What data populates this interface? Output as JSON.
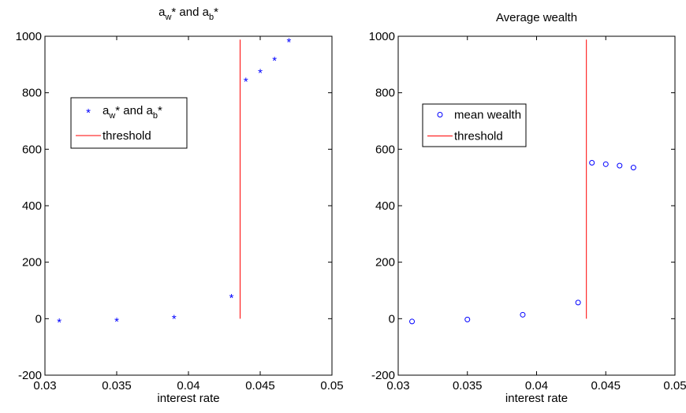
{
  "chart_data": [
    {
      "type": "scatter",
      "title": "a_w* and a_b*",
      "title_parts": {
        "a": "a",
        "w": "w",
        "mid": "* and a",
        "b": "b",
        "star": "*"
      },
      "xlabel": "interest rate",
      "ylabel": "",
      "xlim": [
        0.03,
        0.05
      ],
      "ylim": [
        -200,
        1000
      ],
      "xticks": [
        0.03,
        0.035,
        0.04,
        0.045,
        0.05
      ],
      "xtick_labels": [
        "0.03",
        "0.035",
        "0.04",
        "0.045",
        "0.05"
      ],
      "yticks": [
        -200,
        0,
        200,
        400,
        600,
        800,
        1000
      ],
      "ytick_labels": [
        "-200",
        "0",
        "200",
        "400",
        "600",
        "800",
        "1000"
      ],
      "grid": false,
      "legend_position": "upper-left",
      "series": [
        {
          "name": "a_w* and a_b*",
          "legend_parts": {
            "a": "a",
            "w": "w",
            "mid": "* and a",
            "b": "b",
            "star": "*"
          },
          "marker": "*",
          "color": "#0000ff",
          "x": [
            0.031,
            0.035,
            0.039,
            0.043,
            0.044,
            0.045,
            0.046,
            0.047
          ],
          "y": [
            -5,
            -2,
            8,
            82,
            848,
            878,
            922,
            988
          ]
        },
        {
          "name": "threshold",
          "line": true,
          "color": "#ff0000",
          "x": [
            0.0436,
            0.0436
          ],
          "y": [
            0,
            988
          ]
        }
      ]
    },
    {
      "type": "scatter",
      "title": "Average wealth",
      "xlabel": "interest rate",
      "ylabel": "",
      "xlim": [
        0.03,
        0.05
      ],
      "ylim": [
        -200,
        1000
      ],
      "xticks": [
        0.03,
        0.035,
        0.04,
        0.045,
        0.05
      ],
      "xtick_labels": [
        "0.03",
        "0.035",
        "0.04",
        "0.045",
        "0.05"
      ],
      "yticks": [
        -200,
        0,
        200,
        400,
        600,
        800,
        1000
      ],
      "ytick_labels": [
        "-200",
        "0",
        "200",
        "400",
        "600",
        "800",
        "1000"
      ],
      "grid": false,
      "legend_position": "upper-left",
      "series": [
        {
          "name": "mean wealth",
          "marker": "o",
          "color": "#0000ff",
          "x": [
            0.031,
            0.035,
            0.039,
            0.043,
            0.044,
            0.045,
            0.046,
            0.047
          ],
          "y": [
            -10,
            -3,
            14,
            57,
            552,
            547,
            542,
            535
          ]
        },
        {
          "name": "threshold",
          "line": true,
          "color": "#ff0000",
          "x": [
            0.0436,
            0.0436
          ],
          "y": [
            0,
            988
          ]
        }
      ]
    }
  ]
}
